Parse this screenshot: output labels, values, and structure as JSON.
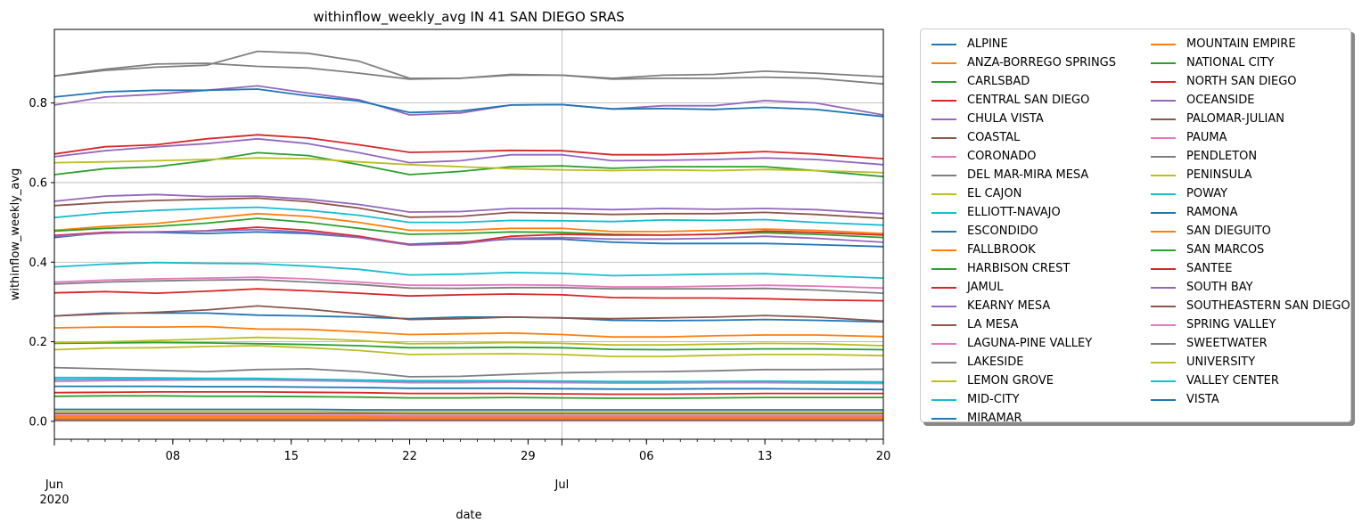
{
  "chart_data": {
    "type": "line",
    "title": "withinflow_weekly_avg IN 41 SAN DIEGO SRAS",
    "xlabel": "date",
    "ylabel": "withinflow_weekly_avg",
    "x_ticks_major": [
      {
        "date": "2020-06-08",
        "label": "08"
      },
      {
        "date": "2020-06-15",
        "label": "15"
      },
      {
        "date": "2020-06-22",
        "label": "22"
      },
      {
        "date": "2020-06-29",
        "label": "29"
      },
      {
        "date": "2020-07-06",
        "label": "06"
      },
      {
        "date": "2020-07-13",
        "label": "13"
      },
      {
        "date": "2020-07-20",
        "label": "20"
      }
    ],
    "x_ticks_month": [
      {
        "date": "2020-06-01",
        "label": "Jun",
        "year": "2020"
      },
      {
        "date": "2020-07-01",
        "label": "Jul",
        "year": ""
      }
    ],
    "xlim": [
      "2020-06-01",
      "2020-07-20"
    ],
    "ylim": [
      -0.045,
      0.985
    ],
    "y_ticks": [
      0.0,
      0.2,
      0.4,
      0.6,
      0.8
    ],
    "y_tick_labels": [
      "0.0",
      "0.2",
      "0.4",
      "0.6",
      "0.8"
    ],
    "grid": "major",
    "legend_position": "outside-right",
    "legend_columns": 2,
    "palette": [
      "#1f77b4",
      "#ff7f0e",
      "#2ca02c",
      "#d62728",
      "#9467bd",
      "#8c564b",
      "#e377c2",
      "#7f7f7f",
      "#bcbd22",
      "#17becf"
    ],
    "x": [
      "2020-06-01",
      "2020-06-04",
      "2020-06-07",
      "2020-06-10",
      "2020-06-13",
      "2020-06-16",
      "2020-06-19",
      "2020-06-22",
      "2020-06-25",
      "2020-06-28",
      "2020-07-01",
      "2020-07-04",
      "2020-07-07",
      "2020-07-10",
      "2020-07-13",
      "2020-07-16",
      "2020-07-20"
    ],
    "series": [
      {
        "name": "ALPINE",
        "values": [
          0.462,
          0.475,
          0.475,
          0.472,
          0.476,
          0.472,
          0.462,
          0.445,
          0.45,
          0.458,
          0.458,
          0.45,
          0.447,
          0.447,
          0.447,
          0.444,
          0.439
        ]
      },
      {
        "name": "ANZA-BORREGO SPRINGS",
        "values": [
          0.235,
          0.237,
          0.237,
          0.238,
          0.232,
          0.231,
          0.225,
          0.218,
          0.22,
          0.222,
          0.218,
          0.212,
          0.212,
          0.215,
          0.217,
          0.217,
          0.213
        ]
      },
      {
        "name": "CARLSBAD",
        "values": [
          0.063,
          0.064,
          0.064,
          0.063,
          0.063,
          0.062,
          0.061,
          0.059,
          0.059,
          0.06,
          0.059,
          0.058,
          0.058,
          0.059,
          0.06,
          0.06,
          0.06
        ]
      },
      {
        "name": "CENTRAL SAN DIEGO",
        "values": [
          0.323,
          0.326,
          0.322,
          0.327,
          0.333,
          0.328,
          0.322,
          0.315,
          0.318,
          0.32,
          0.318,
          0.311,
          0.31,
          0.31,
          0.308,
          0.305,
          0.303
        ]
      },
      {
        "name": "CHULA VISTA",
        "values": [
          0.795,
          0.815,
          0.822,
          0.832,
          0.843,
          0.825,
          0.808,
          0.77,
          0.775,
          0.795,
          0.796,
          0.785,
          0.793,
          0.793,
          0.806,
          0.8,
          0.77
        ]
      },
      {
        "name": "COASTAL",
        "values": [
          0.02,
          0.02,
          0.02,
          0.02,
          0.02,
          0.02,
          0.02,
          0.019,
          0.019,
          0.019,
          0.019,
          0.019,
          0.019,
          0.019,
          0.019,
          0.019,
          0.019
        ]
      },
      {
        "name": "CORONADO",
        "values": [
          0.1,
          0.102,
          0.103,
          0.104,
          0.104,
          0.102,
          0.1,
          0.097,
          0.097,
          0.098,
          0.097,
          0.096,
          0.096,
          0.097,
          0.097,
          0.096,
          0.095
        ]
      },
      {
        "name": "DEL MAR-MIRA MESA",
        "values": [
          0.868,
          0.882,
          0.89,
          0.895,
          0.93,
          0.925,
          0.905,
          0.862,
          0.862,
          0.87,
          0.87,
          0.86,
          0.862,
          0.862,
          0.865,
          0.862,
          0.848
        ]
      },
      {
        "name": "EL CAJON",
        "values": [
          0.18,
          0.184,
          0.185,
          0.188,
          0.19,
          0.185,
          0.178,
          0.168,
          0.169,
          0.17,
          0.168,
          0.163,
          0.163,
          0.166,
          0.168,
          0.168,
          0.165
        ]
      },
      {
        "name": "ELLIOTT-NAVAJO",
        "values": [
          0.512,
          0.524,
          0.53,
          0.535,
          0.538,
          0.53,
          0.518,
          0.5,
          0.5,
          0.505,
          0.504,
          0.502,
          0.506,
          0.505,
          0.507,
          0.5,
          0.493
        ]
      },
      {
        "name": "ESCONDIDO",
        "values": [
          0.265,
          0.272,
          0.272,
          0.272,
          0.267,
          0.265,
          0.262,
          0.258,
          0.262,
          0.262,
          0.26,
          0.254,
          0.253,
          0.254,
          0.256,
          0.254,
          0.25
        ]
      },
      {
        "name": "FALLBROOK",
        "values": [
          0.48,
          0.49,
          0.497,
          0.51,
          0.522,
          0.515,
          0.5,
          0.48,
          0.48,
          0.485,
          0.485,
          0.477,
          0.477,
          0.48,
          0.483,
          0.48,
          0.472
        ]
      },
      {
        "name": "HARBISON CREST",
        "values": [
          0.196,
          0.197,
          0.198,
          0.197,
          0.195,
          0.193,
          0.19,
          0.185,
          0.185,
          0.186,
          0.185,
          0.181,
          0.18,
          0.181,
          0.182,
          0.182,
          0.18
        ]
      },
      {
        "name": "JAMUL",
        "values": [
          0.072,
          0.073,
          0.074,
          0.074,
          0.074,
          0.073,
          0.072,
          0.07,
          0.07,
          0.07,
          0.069,
          0.068,
          0.068,
          0.069,
          0.07,
          0.07,
          0.07
        ]
      },
      {
        "name": "KEARNY MESA",
        "values": [
          0.553,
          0.566,
          0.57,
          0.565,
          0.566,
          0.558,
          0.545,
          0.526,
          0.527,
          0.535,
          0.535,
          0.532,
          0.535,
          0.533,
          0.535,
          0.532,
          0.522
        ]
      },
      {
        "name": "LA MESA",
        "values": [
          0.542,
          0.55,
          0.555,
          0.558,
          0.561,
          0.552,
          0.536,
          0.513,
          0.515,
          0.525,
          0.523,
          0.52,
          0.522,
          0.522,
          0.525,
          0.52,
          0.51
        ]
      },
      {
        "name": "LAGUNA-PINE VALLEY",
        "values": [
          0.005,
          0.005,
          0.005,
          0.005,
          0.005,
          0.005,
          0.005,
          0.005,
          0.005,
          0.005,
          0.005,
          0.005,
          0.005,
          0.005,
          0.005,
          0.005,
          0.005
        ]
      },
      {
        "name": "LAKESIDE",
        "values": [
          0.135,
          0.132,
          0.128,
          0.125,
          0.13,
          0.132,
          0.125,
          0.112,
          0.113,
          0.118,
          0.122,
          0.124,
          0.125,
          0.127,
          0.13,
          0.13,
          0.131
        ]
      },
      {
        "name": "LEMON GROVE",
        "values": [
          0.198,
          0.2,
          0.203,
          0.207,
          0.211,
          0.208,
          0.203,
          0.195,
          0.196,
          0.198,
          0.196,
          0.192,
          0.192,
          0.194,
          0.196,
          0.195,
          0.19
        ]
      },
      {
        "name": "MID-CITY",
        "values": [
          0.388,
          0.395,
          0.399,
          0.397,
          0.396,
          0.39,
          0.382,
          0.368,
          0.37,
          0.374,
          0.372,
          0.366,
          0.368,
          0.37,
          0.371,
          0.366,
          0.36
        ]
      },
      {
        "name": "MIRAMAR",
        "values": [
          0.815,
          0.828,
          0.832,
          0.832,
          0.835,
          0.818,
          0.805,
          0.776,
          0.78,
          0.795,
          0.796,
          0.785,
          0.786,
          0.784,
          0.789,
          0.784,
          0.766
        ]
      },
      {
        "name": "MOUNTAIN EMPIRE",
        "values": [
          0.012,
          0.012,
          0.012,
          0.012,
          0.012,
          0.012,
          0.012,
          0.011,
          0.011,
          0.011,
          0.011,
          0.011,
          0.011,
          0.011,
          0.011,
          0.011,
          0.011
        ]
      },
      {
        "name": "NATIONAL CITY",
        "values": [
          0.62,
          0.635,
          0.64,
          0.655,
          0.675,
          0.668,
          0.645,
          0.62,
          0.628,
          0.64,
          0.642,
          0.636,
          0.64,
          0.64,
          0.64,
          0.63,
          0.615
        ]
      },
      {
        "name": "NORTH SAN DIEGO",
        "values": [
          0.672,
          0.69,
          0.695,
          0.71,
          0.72,
          0.712,
          0.695,
          0.676,
          0.678,
          0.681,
          0.68,
          0.67,
          0.67,
          0.673,
          0.678,
          0.672,
          0.66
        ]
      },
      {
        "name": "OCEANSIDE",
        "values": [
          0.665,
          0.68,
          0.69,
          0.698,
          0.71,
          0.698,
          0.675,
          0.65,
          0.655,
          0.67,
          0.67,
          0.655,
          0.656,
          0.658,
          0.662,
          0.658,
          0.645
        ]
      },
      {
        "name": "PALOMAR-JULIAN",
        "values": [
          0.003,
          0.003,
          0.003,
          0.003,
          0.003,
          0.003,
          0.003,
          0.003,
          0.003,
          0.003,
          0.003,
          0.003,
          0.003,
          0.003,
          0.003,
          0.003,
          0.003
        ]
      },
      {
        "name": "PAUMA",
        "values": [
          0.015,
          0.015,
          0.015,
          0.015,
          0.015,
          0.015,
          0.015,
          0.014,
          0.014,
          0.014,
          0.014,
          0.014,
          0.014,
          0.014,
          0.014,
          0.014,
          0.014
        ]
      },
      {
        "name": "PENDLETON",
        "values": [
          0.868,
          0.885,
          0.898,
          0.9,
          0.892,
          0.888,
          0.875,
          0.86,
          0.862,
          0.872,
          0.87,
          0.862,
          0.87,
          0.872,
          0.88,
          0.875,
          0.866
        ]
      },
      {
        "name": "PENINSULA",
        "values": [
          0.65,
          0.652,
          0.655,
          0.658,
          0.662,
          0.66,
          0.652,
          0.645,
          0.64,
          0.635,
          0.632,
          0.63,
          0.632,
          0.63,
          0.633,
          0.63,
          0.625
        ]
      },
      {
        "name": "POWAY",
        "values": [
          0.11,
          0.11,
          0.109,
          0.108,
          0.108,
          0.106,
          0.104,
          0.102,
          0.102,
          0.102,
          0.101,
          0.1,
          0.1,
          0.1,
          0.101,
          0.1,
          0.099
        ]
      },
      {
        "name": "RAMONA",
        "values": [
          0.088,
          0.088,
          0.088,
          0.087,
          0.087,
          0.086,
          0.085,
          0.083,
          0.083,
          0.083,
          0.082,
          0.081,
          0.081,
          0.082,
          0.082,
          0.081,
          0.08
        ]
      },
      {
        "name": "SAN DIEGUITO",
        "values": [
          0.008,
          0.008,
          0.008,
          0.008,
          0.008,
          0.008,
          0.008,
          0.008,
          0.008,
          0.008,
          0.008,
          0.008,
          0.008,
          0.008,
          0.008,
          0.008,
          0.008
        ]
      },
      {
        "name": "SAN MARCOS",
        "values": [
          0.478,
          0.485,
          0.49,
          0.498,
          0.51,
          0.5,
          0.485,
          0.47,
          0.472,
          0.476,
          0.475,
          0.47,
          0.468,
          0.47,
          0.474,
          0.47,
          0.462
        ]
      },
      {
        "name": "SANTEE",
        "values": [
          0.467,
          0.475,
          0.476,
          0.479,
          0.488,
          0.48,
          0.465,
          0.444,
          0.448,
          0.465,
          0.47,
          0.468,
          0.468,
          0.47,
          0.478,
          0.475,
          0.468
        ]
      },
      {
        "name": "SOUTH BAY",
        "values": [
          0.465,
          0.473,
          0.476,
          0.478,
          0.482,
          0.475,
          0.462,
          0.443,
          0.446,
          0.46,
          0.462,
          0.458,
          0.458,
          0.46,
          0.465,
          0.46,
          0.45
        ]
      },
      {
        "name": "SOUTHEASTERN SAN DIEGO",
        "values": [
          0.265,
          0.27,
          0.274,
          0.28,
          0.29,
          0.282,
          0.27,
          0.256,
          0.258,
          0.262,
          0.26,
          0.258,
          0.26,
          0.262,
          0.266,
          0.262,
          0.252
        ]
      },
      {
        "name": "SPRING VALLEY",
        "values": [
          0.35,
          0.355,
          0.358,
          0.36,
          0.362,
          0.358,
          0.35,
          0.342,
          0.342,
          0.343,
          0.342,
          0.338,
          0.338,
          0.34,
          0.342,
          0.34,
          0.335
        ]
      },
      {
        "name": "SWEETWATER",
        "values": [
          0.345,
          0.35,
          0.353,
          0.355,
          0.356,
          0.35,
          0.344,
          0.335,
          0.334,
          0.336,
          0.336,
          0.333,
          0.333,
          0.333,
          0.334,
          0.33,
          0.322
        ]
      },
      {
        "name": "UNIVERSITY",
        "values": [
          0.025,
          0.025,
          0.025,
          0.025,
          0.025,
          0.025,
          0.024,
          0.024,
          0.024,
          0.024,
          0.024,
          0.024,
          0.024,
          0.024,
          0.024,
          0.024,
          0.024
        ]
      },
      {
        "name": "VALLEY CENTER",
        "values": [
          0.105,
          0.106,
          0.106,
          0.106,
          0.106,
          0.105,
          0.103,
          0.1,
          0.1,
          0.101,
          0.1,
          0.099,
          0.099,
          0.1,
          0.1,
          0.099,
          0.098
        ]
      },
      {
        "name": "VISTA",
        "values": [
          0.03,
          0.03,
          0.03,
          0.03,
          0.03,
          0.03,
          0.029,
          0.029,
          0.029,
          0.029,
          0.029,
          0.029,
          0.029,
          0.029,
          0.029,
          0.029,
          0.029
        ]
      }
    ]
  }
}
